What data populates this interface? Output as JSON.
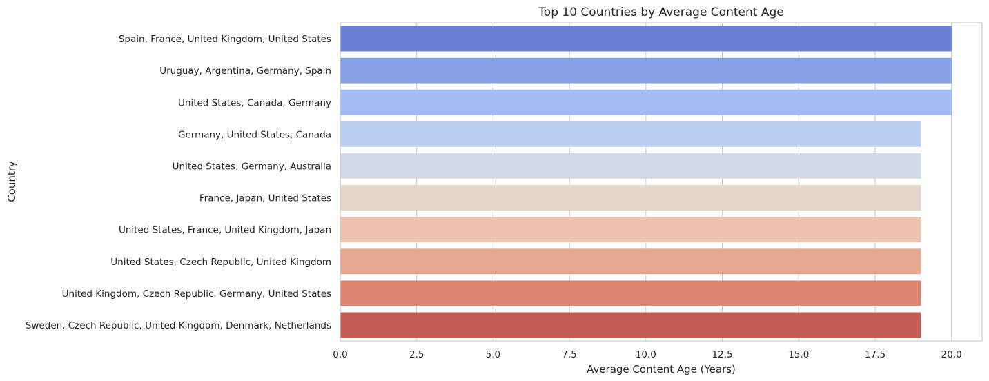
{
  "chart_data": {
    "type": "bar",
    "orientation": "horizontal",
    "title": "Top 10 Countries by Average Content Age",
    "xlabel": "Average Content Age (Years)",
    "ylabel": "Country",
    "xlim": [
      0,
      21
    ],
    "xticks": [
      0,
      2.5,
      5,
      7.5,
      10,
      12.5,
      15,
      17.5,
      20
    ],
    "xtick_labels": [
      "0.0",
      "2.5",
      "5.0",
      "7.5",
      "10.0",
      "12.5",
      "15.0",
      "17.5",
      "20.0"
    ],
    "grid": "vertical",
    "categories": [
      "Spain, France, United Kingdom, United States",
      "Uruguay, Argentina, Germany, Spain",
      "United States, Canada, Germany",
      "Germany, United States, Canada",
      "United States, Germany, Australia",
      "France, Japan, United States",
      "United States, France, United Kingdom, Japan",
      "United States, Czech Republic, United Kingdom",
      "United Kingdom, Czech Republic, Germany, United States",
      "Sweden, Czech Republic, United Kingdom, Denmark, Netherlands"
    ],
    "values": [
      20,
      20,
      20,
      19,
      19,
      19,
      19,
      19,
      19,
      19
    ],
    "colors": [
      "#6a80d4",
      "#86a0e6",
      "#a3bbf3",
      "#bdcff1",
      "#d4dae6",
      "#e4d6cd",
      "#ebc3b0",
      "#e8a78f",
      "#dc8672",
      "#c35c53"
    ]
  }
}
